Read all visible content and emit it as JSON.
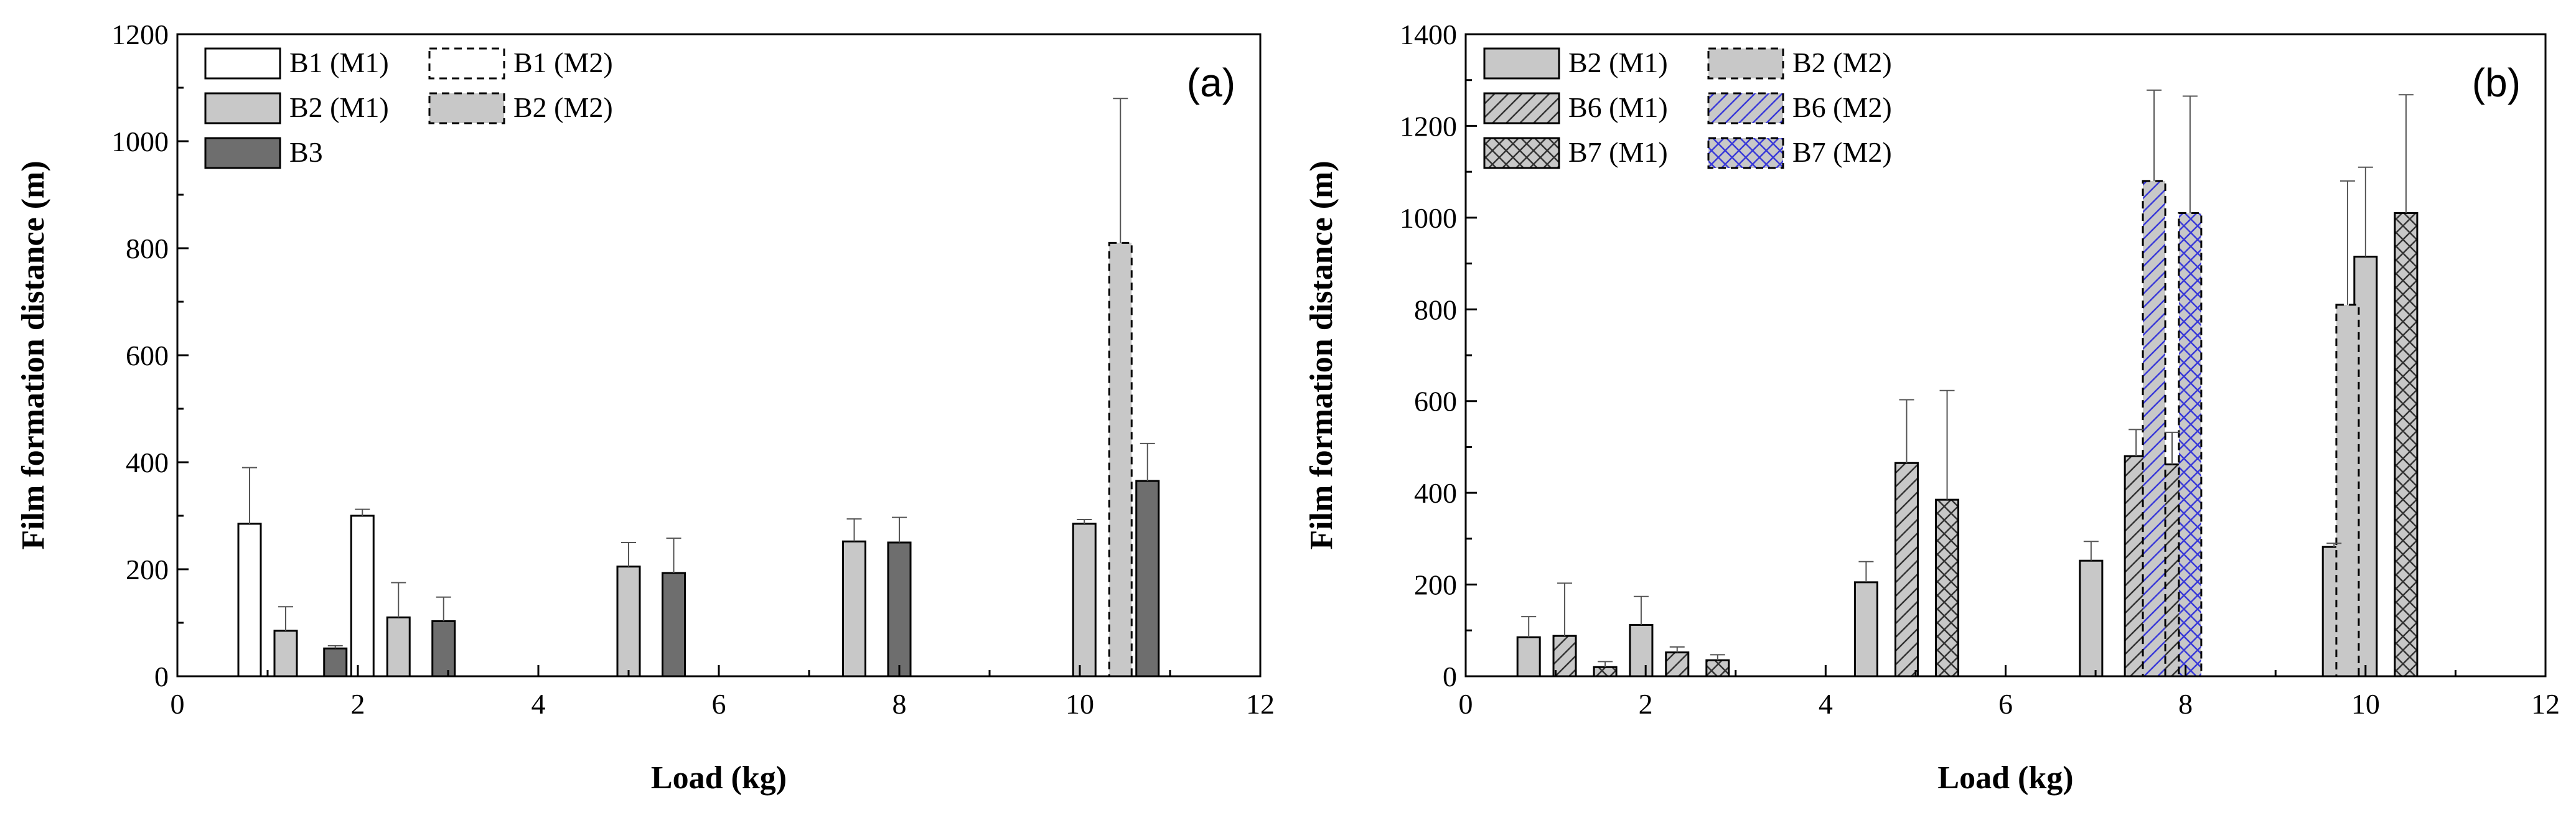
{
  "chart_data": [
    {
      "type": "bar",
      "panel_label": "(a)",
      "xlabel": "Load (kg)",
      "ylabel": "Film formation distance (m)",
      "xlim": [
        0,
        12
      ],
      "ylim": [
        0,
        1200
      ],
      "xticks": [
        0,
        2,
        4,
        6,
        8,
        10,
        12
      ],
      "yticks": [
        0,
        200,
        400,
        600,
        800,
        1000,
        1200
      ],
      "legend_position": "top-left",
      "series": [
        {
          "name": "B1 (M1)",
          "style": "outline-solid",
          "fill": "#ffffff",
          "hatch": "none",
          "points": [
            {
              "x": 0.8,
              "y": 285,
              "err": 105
            },
            {
              "x": 2.05,
              "y": 300,
              "err": 12
            }
          ]
        },
        {
          "name": "B1 (M2)",
          "style": "outline-dashed",
          "fill": "#ffffff",
          "hatch": "none",
          "points": []
        },
        {
          "name": "B2 (M1)",
          "style": "outline-solid",
          "fill": "#c8c8c8",
          "hatch": "none",
          "points": [
            {
              "x": 1.2,
              "y": 85,
              "err": 45
            },
            {
              "x": 2.45,
              "y": 110,
              "err": 65
            },
            {
              "x": 5.0,
              "y": 205,
              "err": 45
            },
            {
              "x": 7.5,
              "y": 252,
              "err": 42
            },
            {
              "x": 10.05,
              "y": 285,
              "err": 8
            }
          ]
        },
        {
          "name": "B2 (M2)",
          "style": "outline-dashed",
          "fill": "#c8c8c8",
          "hatch": "none",
          "points": [
            {
              "x": 10.45,
              "y": 810,
              "err": 270
            }
          ]
        },
        {
          "name": "B3",
          "style": "outline-solid",
          "fill": "#6e6e6e",
          "hatch": "none",
          "points": [
            {
              "x": 1.75,
              "y": 52,
              "err": 5
            },
            {
              "x": 2.95,
              "y": 103,
              "err": 45
            },
            {
              "x": 5.5,
              "y": 193,
              "err": 65
            },
            {
              "x": 8.0,
              "y": 250,
              "err": 47
            },
            {
              "x": 10.75,
              "y": 365,
              "err": 70
            }
          ]
        }
      ]
    },
    {
      "type": "bar",
      "panel_label": "(b)",
      "xlabel": "Load (kg)",
      "ylabel": "Film formation distance (m)",
      "xlim": [
        0,
        12
      ],
      "ylim": [
        0,
        1400
      ],
      "xticks": [
        0,
        2,
        4,
        6,
        8,
        10,
        12
      ],
      "yticks": [
        0,
        200,
        400,
        600,
        800,
        1000,
        1200,
        1400
      ],
      "legend_position": "top-left",
      "series": [
        {
          "name": "B2 (M1)",
          "style": "outline-solid",
          "fill": "#c8c8c8",
          "hatch": "none",
          "points": [
            {
              "x": 0.7,
              "y": 85,
              "err": 45
            },
            {
              "x": 1.95,
              "y": 112,
              "err": 62
            },
            {
              "x": 4.45,
              "y": 205,
              "err": 45
            },
            {
              "x": 6.95,
              "y": 252,
              "err": 42
            },
            {
              "x": 9.65,
              "y": 282,
              "err": 8
            },
            {
              "x": 10.0,
              "y": 915,
              "err": 195
            }
          ]
        },
        {
          "name": "B2 (M2)",
          "style": "outline-dashed",
          "fill": "#c8c8c8",
          "hatch": "none",
          "points": [
            {
              "x": 9.8,
              "y": 810,
              "err": 270
            }
          ]
        },
        {
          "name": "B6 (M1)",
          "style": "outline-solid",
          "fill": "#c8c8c8",
          "hatch": "diagonal",
          "points": [
            {
              "x": 1.1,
              "y": 88,
              "err": 115
            },
            {
              "x": 2.35,
              "y": 52,
              "err": 12
            },
            {
              "x": 4.9,
              "y": 465,
              "err": 138
            },
            {
              "x": 7.45,
              "y": 480,
              "err": 58
            },
            {
              "x": 7.85,
              "y": 462,
              "err": 70
            }
          ]
        },
        {
          "name": "B6 (M2)",
          "style": "outline-dashed",
          "fill": "#c8c8c8",
          "hatch": "diagonal-blue",
          "points": [
            {
              "x": 7.65,
              "y": 1080,
              "err": 198
            }
          ]
        },
        {
          "name": "B7 (M1)",
          "style": "outline-solid",
          "fill": "#c8c8c8",
          "hatch": "crosshatch",
          "points": [
            {
              "x": 1.55,
              "y": 20,
              "err": 12
            },
            {
              "x": 2.8,
              "y": 35,
              "err": 12
            },
            {
              "x": 5.35,
              "y": 385,
              "err": 238
            },
            {
              "x": 10.45,
              "y": 1010,
              "err": 258
            }
          ]
        },
        {
          "name": "B7 (M2)",
          "style": "outline-dashed",
          "fill": "#c8c8c8",
          "hatch": "crosshatch-blue",
          "points": [
            {
              "x": 8.05,
              "y": 1010,
              "err": 255
            }
          ]
        }
      ]
    }
  ]
}
